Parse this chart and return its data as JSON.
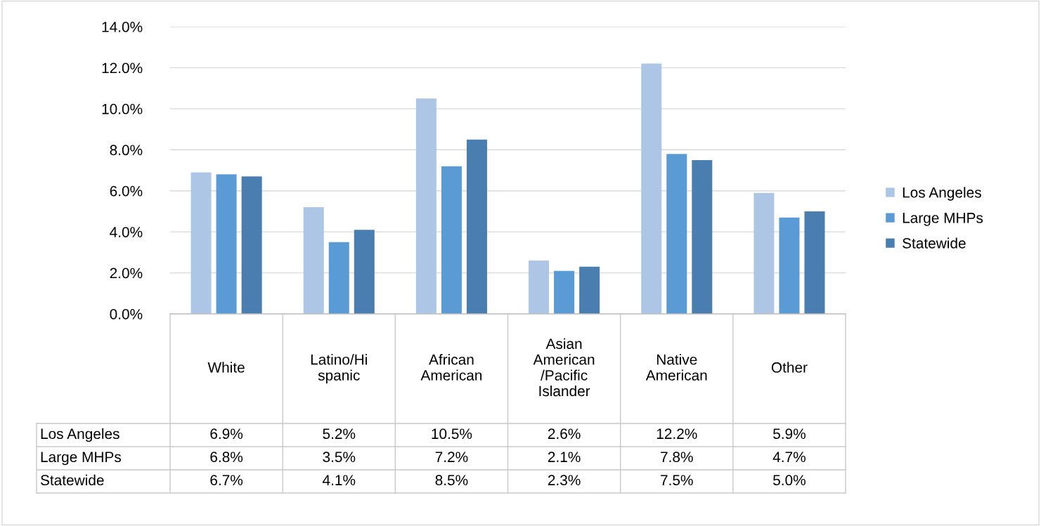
{
  "chart_data": {
    "type": "bar",
    "categories": [
      "White",
      "Latino/Hi\nspanic",
      "African\nAmerican",
      "Asian\nAmerican\n/Pacific\nIslander",
      "Native\nAmerican",
      "Other"
    ],
    "series": [
      {
        "name": "Los Angeles",
        "color": "#adc6e5",
        "values": [
          6.9,
          5.2,
          10.5,
          2.6,
          12.2,
          5.9
        ],
        "value_labels": [
          "6.9%",
          "5.2%",
          "10.5%",
          "2.6%",
          "12.2%",
          "5.9%"
        ]
      },
      {
        "name": "Large MHPs",
        "color": "#5b9bd5",
        "values": [
          6.8,
          3.5,
          7.2,
          2.1,
          7.8,
          4.7
        ],
        "value_labels": [
          "6.8%",
          "3.5%",
          "7.2%",
          "2.1%",
          "7.8%",
          "4.7%"
        ]
      },
      {
        "name": "Statewide",
        "color": "#4a7eb0",
        "values": [
          6.7,
          4.1,
          8.5,
          2.3,
          7.5,
          5.0
        ],
        "value_labels": [
          "6.7%",
          "4.1%",
          "8.5%",
          "2.3%",
          "7.5%",
          "5.0%"
        ]
      }
    ],
    "ylim": [
      0,
      14
    ],
    "yticks": [
      {
        "value": 0,
        "label": "0.0%"
      },
      {
        "value": 2,
        "label": "2.0%"
      },
      {
        "value": 4,
        "label": "4.0%"
      },
      {
        "value": 6,
        "label": "6.0%"
      },
      {
        "value": 8,
        "label": "8.0%"
      },
      {
        "value": 10,
        "label": "10.0%"
      },
      {
        "value": 12,
        "label": "12.0%"
      },
      {
        "value": 14,
        "label": "14.0%"
      }
    ],
    "grid": "y",
    "legend": "right"
  }
}
